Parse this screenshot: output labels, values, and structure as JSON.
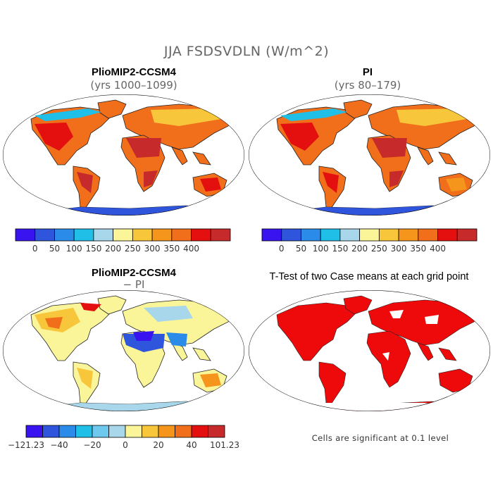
{
  "title": "JJA FSDSVDLN (W/m^2)",
  "panels": [
    {
      "title": "PlioMIP2-CCSM4",
      "subtitle": "(yrs 1000–1099)"
    },
    {
      "title": "PI",
      "subtitle": "(yrs 80–179)"
    },
    {
      "title": "PlioMIP2-CCSM4",
      "subtitle": "− PI"
    },
    {
      "title": "T-Test of two Case means at each grid point",
      "subtitle": ""
    }
  ],
  "colorbar_abs": {
    "colors": [
      "#3a14f0",
      "#2f55dd",
      "#2a8be8",
      "#20bfe8",
      "#a8d6ea",
      "#fbf59a",
      "#f8c63a",
      "#f5951c",
      "#f16e1a",
      "#e40f0f",
      "#c62a2a"
    ],
    "labels": [
      "0",
      "50",
      "100",
      "150",
      "200",
      "250",
      "300",
      "350",
      "400"
    ]
  },
  "colorbar_diff": {
    "colors": [
      "#3a14f0",
      "#2f55dd",
      "#2a8be8",
      "#20bfe8",
      "#6fc8ee",
      "#a8d6ea",
      "#fbf59a",
      "#f8c63a",
      "#f5951c",
      "#f16e1a",
      "#e40f0f",
      "#c62a2a"
    ],
    "labels": [
      "−121.23",
      "−40",
      "−20",
      "0",
      "20",
      "40",
      "101.23"
    ]
  },
  "note": "Cells are significant at 0.1 level"
}
